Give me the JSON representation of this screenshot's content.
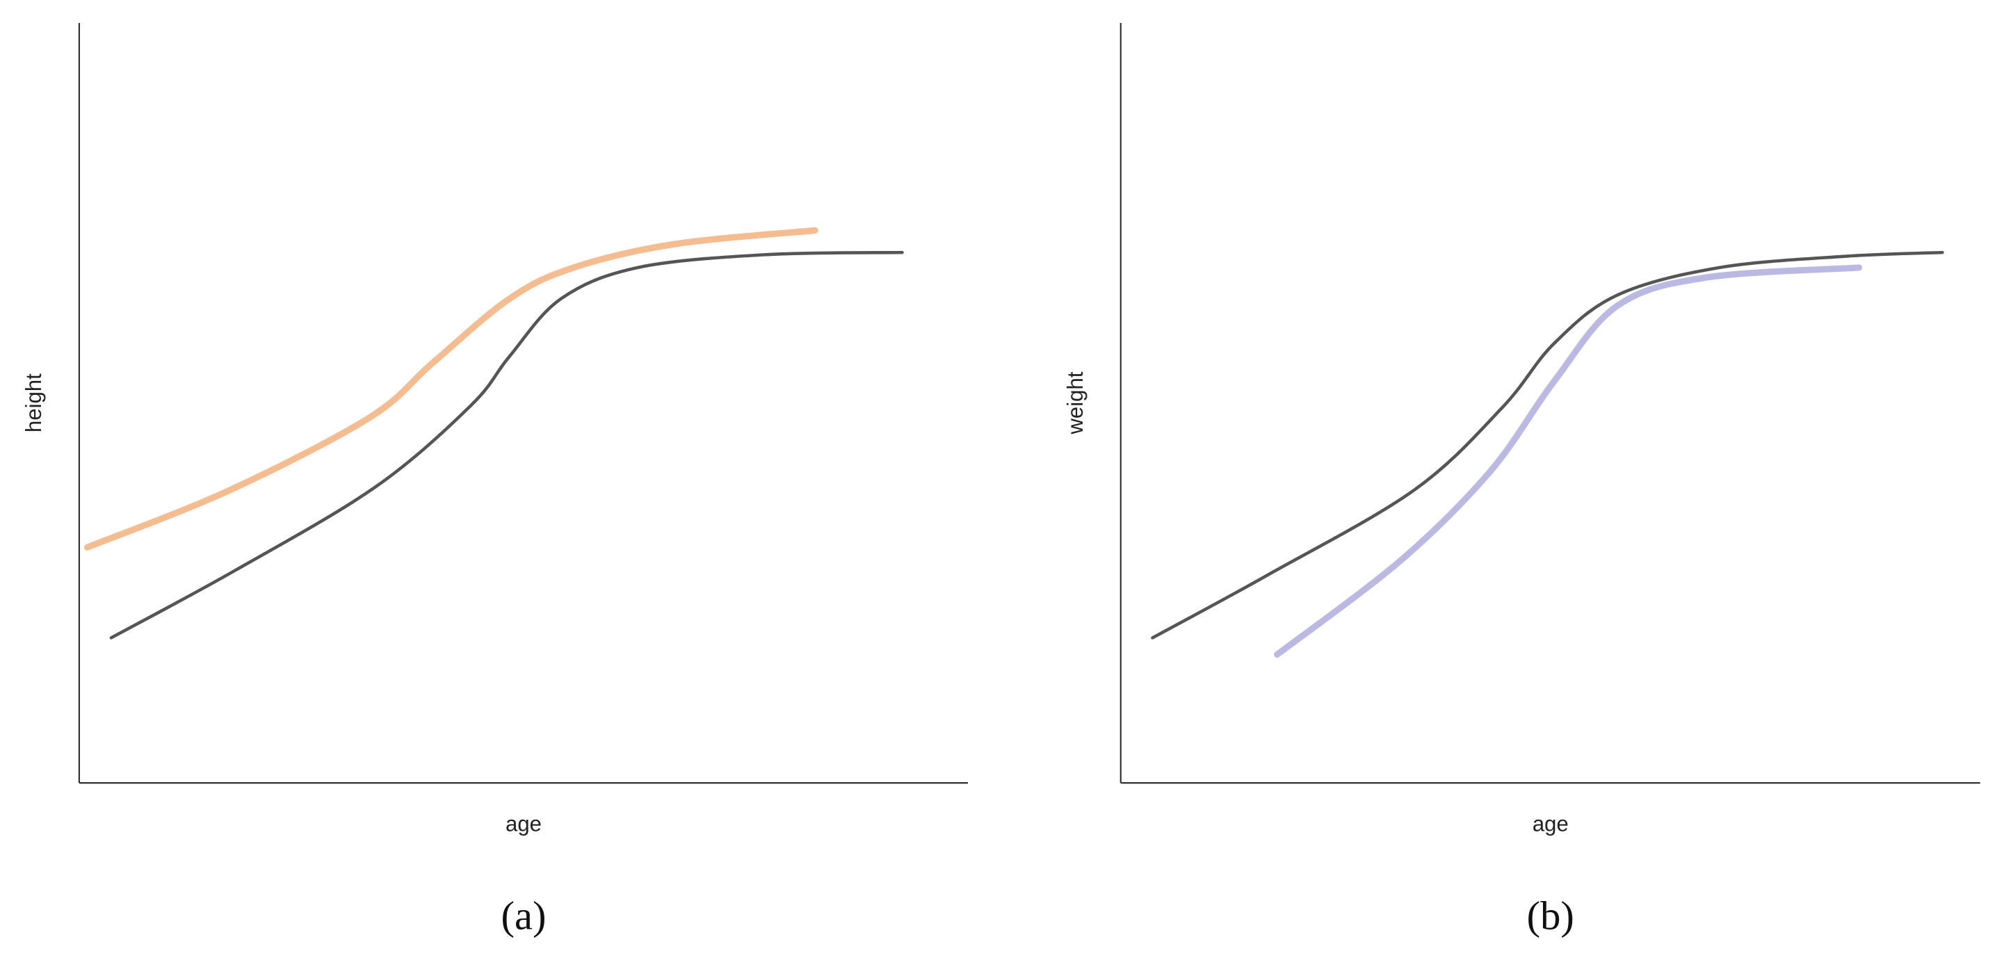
{
  "chart_data": [
    {
      "type": "line",
      "xlabel": "age",
      "ylabel": "height",
      "label": "(a)",
      "xlim": [
        0,
        100
      ],
      "ylim": [
        0,
        100
      ],
      "series": [
        {
          "color": "#555555",
          "x": [
            3.6,
            17.6,
            33.4,
            44.1,
            48.4,
            54.2,
            62.8,
            77.1,
            92.6
          ],
          "values": [
            19.1,
            28.0,
            39.0,
            49.7,
            56.1,
            63.7,
            67.8,
            69.5,
            69.8
          ]
        },
        {
          "color": "#f4bc8f",
          "x": [
            0.9,
            16.9,
            32.7,
            39.8,
            48.4,
            55.6,
            67.0,
            82.8
          ],
          "values": [
            31.0,
            38.5,
            48.1,
            55.3,
            63.7,
            67.8,
            70.9,
            72.7
          ]
        }
      ]
    },
    {
      "type": "line",
      "xlabel": "age",
      "ylabel": "weight",
      "label": "(b)",
      "xlim": [
        0,
        100
      ],
      "ylim": [
        0,
        100
      ],
      "series": [
        {
          "color": "#555555",
          "x": [
            3.7,
            17.0,
            34.1,
            44.4,
            50.4,
            57.8,
            69.6,
            84.4,
            95.6
          ],
          "values": [
            19.1,
            27.3,
            38.5,
            49.4,
            57.8,
            64.2,
            67.8,
            69.3,
            69.8
          ]
        },
        {
          "color": "#b9b9e3",
          "x": [
            18.2,
            32.6,
            43.0,
            50.4,
            57.8,
            68.1,
            85.9
          ],
          "values": [
            16.9,
            29.3,
            41.0,
            52.8,
            62.8,
            66.5,
            67.8
          ]
        }
      ]
    }
  ]
}
